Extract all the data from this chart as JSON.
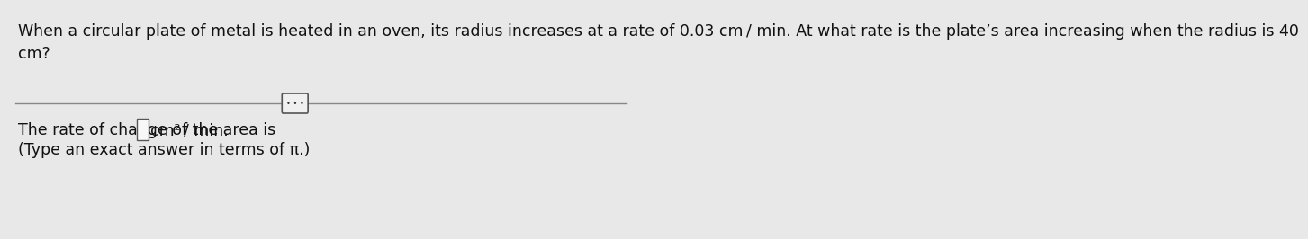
{
  "background_color": "#e8e8e8",
  "text_color": "#111111",
  "question_line1": "When a circular plate of metal is heated in an oven, its radius increases at a rate of 0.03 cm / min. At what rate is the plate’s area increasing when the radius is 40",
  "question_line2": "cm?",
  "answer_line1_pre": "The rate of change of the area is",
  "answer_unit": "cm² / min.",
  "answer_line2": "(Type an exact answer in terms of π.)",
  "font_size": 12.5,
  "divider_color": "#888888",
  "box_face": "#f8f8f8",
  "box_edge": "#555555",
  "ellipsis_box_face": "#f0f0f0",
  "ellipsis_box_edge": "#555555"
}
